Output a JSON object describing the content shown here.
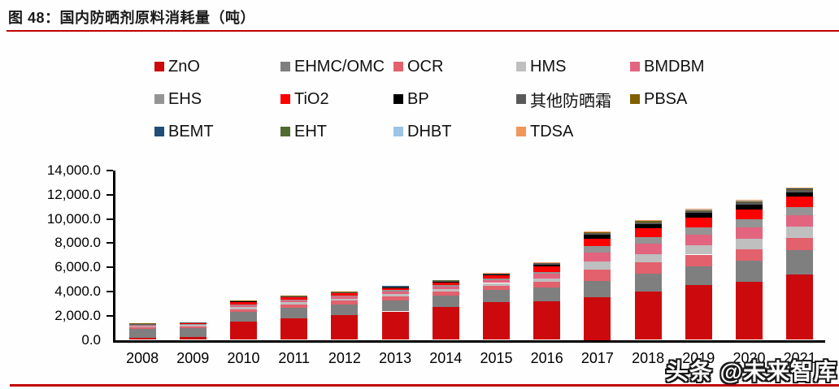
{
  "figure": {
    "title": "图 48：国内防晒剂原料消耗量（吨）"
  },
  "watermark": {
    "text": "头条 @未来智库"
  },
  "colors": {
    "rule": "#c00000",
    "axis": "#000000",
    "background": "#fefefe"
  },
  "chart_data": {
    "type": "bar",
    "stacked": true,
    "title": "国内防晒剂原料消耗量（吨）",
    "xlabel": "",
    "ylabel": "",
    "ylim": [
      0,
      14000
    ],
    "ytick_step": 2000,
    "ytick_labels": [
      "0.0",
      "2,000.0",
      "4,000.0",
      "6,000.0",
      "8,000.0",
      "10,000.0",
      "12,000.0",
      "14,000.0"
    ],
    "grid": false,
    "legend_position": "top",
    "legend_columns": 5,
    "categories": [
      "2008",
      "2009",
      "2010",
      "2011",
      "2012",
      "2013",
      "2014",
      "2015",
      "2016",
      "2017",
      "2018",
      "2019",
      "2020",
      "2021"
    ],
    "series": [
      {
        "name": "ZnO",
        "color": "#cc0a0d",
        "values": [
          200,
          250,
          1500,
          1800,
          2050,
          2350,
          2700,
          3100,
          3200,
          3500,
          4000,
          4500,
          4800,
          5400
        ]
      },
      {
        "name": "EHMC/OMC",
        "color": "#7f7f7f",
        "values": [
          700,
          720,
          800,
          850,
          880,
          920,
          950,
          1000,
          1150,
          1350,
          1450,
          1600,
          1750,
          2000
        ]
      },
      {
        "name": "OCR",
        "color": "#e2616c",
        "values": [
          150,
          160,
          250,
          280,
          300,
          320,
          340,
          360,
          450,
          950,
          950,
          950,
          950,
          1000
        ]
      },
      {
        "name": "HMS",
        "color": "#bfbfbf",
        "values": [
          80,
          90,
          150,
          170,
          180,
          200,
          220,
          240,
          300,
          650,
          700,
          750,
          850,
          950
        ]
      },
      {
        "name": "BMDBM",
        "color": "#e2647f",
        "values": [
          60,
          70,
          150,
          160,
          180,
          200,
          220,
          250,
          350,
          800,
          850,
          900,
          950,
          950
        ]
      },
      {
        "name": "EHS",
        "color": "#949494",
        "values": [
          40,
          45,
          80,
          90,
          100,
          110,
          120,
          130,
          180,
          500,
          550,
          600,
          650,
          650
        ]
      },
      {
        "name": "TiO2",
        "color": "#ff0000",
        "values": [
          60,
          70,
          180,
          150,
          150,
          180,
          200,
          230,
          420,
          600,
          700,
          800,
          850,
          900
        ]
      },
      {
        "name": "BP",
        "color": "#000000",
        "values": [
          30,
          25,
          70,
          70,
          70,
          80,
          90,
          100,
          180,
          330,
          350,
          380,
          380,
          350
        ]
      },
      {
        "name": "其他防晒霜",
        "color": "#595959",
        "values": [
          20,
          15,
          50,
          50,
          50,
          60,
          60,
          70,
          100,
          160,
          180,
          180,
          200,
          220
        ]
      },
      {
        "name": "PBSA",
        "color": "#7f6000",
        "values": [
          5,
          5,
          20,
          20,
          20,
          30,
          30,
          40,
          50,
          80,
          100,
          100,
          100,
          100
        ]
      },
      {
        "name": "BEMT",
        "color": "#1f4e79",
        "values": [
          1,
          1,
          3,
          4,
          5,
          6,
          7,
          8,
          10,
          15,
          18,
          20,
          22,
          25
        ]
      },
      {
        "name": "EHT",
        "color": "#4f6b31",
        "values": [
          1,
          1,
          2,
          3,
          4,
          5,
          6,
          7,
          8,
          12,
          14,
          16,
          18,
          20
        ]
      },
      {
        "name": "DHBT",
        "color": "#9dc3e6",
        "values": [
          1,
          1,
          2,
          2,
          3,
          4,
          5,
          6,
          7,
          10,
          12,
          14,
          16,
          18
        ]
      },
      {
        "name": "TDSA",
        "color": "#f0975a",
        "values": [
          1,
          1,
          2,
          2,
          3,
          4,
          5,
          6,
          7,
          9,
          11,
          13,
          15,
          17
        ]
      }
    ]
  }
}
